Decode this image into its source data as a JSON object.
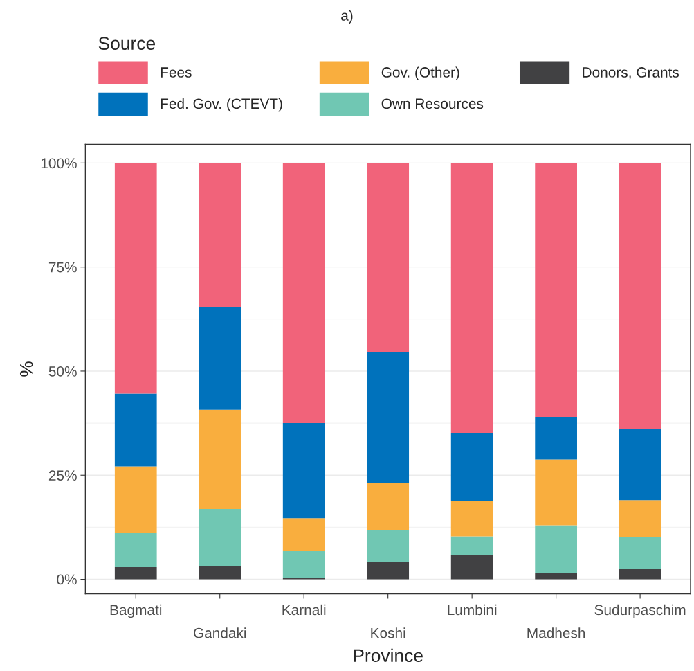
{
  "chart_data": {
    "type": "bar",
    "title": "a)",
    "xlabel": "Province",
    "ylabel": "%",
    "legend_title": "Source",
    "stacked": true,
    "legend": "top",
    "grid": "y",
    "categories": [
      "Bagmati",
      "Gandaki",
      "Karnali",
      "Koshi",
      "Lumbini",
      "Madhesh",
      "Sudurpaschim"
    ],
    "series": [
      {
        "name": "Donors, Grants",
        "color": "#414143",
        "values": [
          2.9,
          3.2,
          0.3,
          4.1,
          5.8,
          1.4,
          2.5
        ]
      },
      {
        "name": "Own Resources",
        "color": "#70c7b3",
        "values": [
          8.3,
          13.7,
          6.5,
          7.8,
          4.5,
          11.6,
          7.7
        ]
      },
      {
        "name": "Gov. (Other)",
        "color": "#f9ae3e",
        "values": [
          15.9,
          23.8,
          7.9,
          11.2,
          8.6,
          15.8,
          8.8
        ]
      },
      {
        "name": "Fed. Gov. (CTEVT)",
        "color": "#0072bc",
        "values": [
          17.5,
          24.7,
          22.8,
          31.5,
          16.3,
          10.2,
          17.1
        ]
      },
      {
        "name": "Fees",
        "color": "#f1637a",
        "values": [
          55.4,
          34.6,
          62.5,
          45.4,
          64.8,
          61.0,
          63.9
        ]
      }
    ],
    "ylim": [
      -3.5,
      104.5
    ],
    "yticks": [
      {
        "value": 0,
        "label": "0%"
      },
      {
        "value": 25,
        "label": "25%"
      },
      {
        "value": 50,
        "label": "50%"
      },
      {
        "value": 75,
        "label": "75%"
      },
      {
        "value": 100,
        "label": "100%"
      }
    ]
  }
}
